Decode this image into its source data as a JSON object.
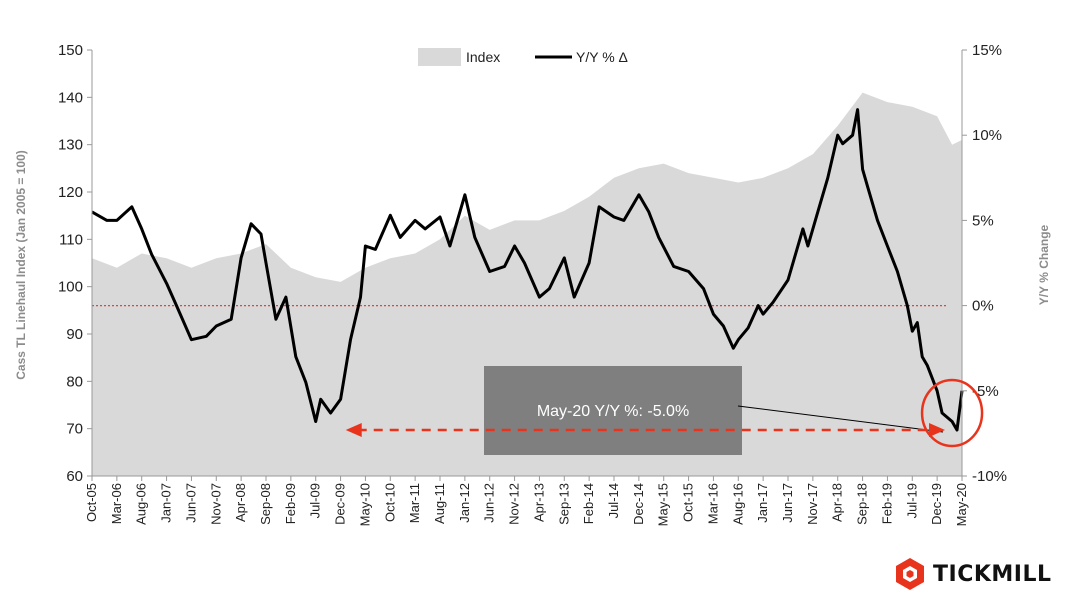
{
  "chart_data": {
    "type": "area+line",
    "legend": {
      "placement": "top-center",
      "entries": [
        {
          "name": "Index",
          "kind": "area",
          "color": "#d9d9d9"
        },
        {
          "name": "Y/Y % Δ",
          "kind": "line",
          "color": "#000000"
        }
      ]
    },
    "ylabel_left": "Cass TL Linehaul Index (Jan 2005 = 100)",
    "ylabel_right": "Y/Y % Change",
    "ylim_left": [
      60,
      150
    ],
    "yticks_left": [
      "60",
      "70",
      "80",
      "90",
      "100",
      "110",
      "120",
      "130",
      "140",
      "150"
    ],
    "ylim_right": [
      -10,
      15
    ],
    "yticks_right": [
      "-10%",
      "-5%",
      "0%",
      "5%",
      "10%",
      "15%"
    ],
    "xticks": [
      "Oct-05",
      "Mar-06",
      "Aug-06",
      "Jan-07",
      "Jun-07",
      "Nov-07",
      "Apr-08",
      "Sep-08",
      "Feb-09",
      "Jul-09",
      "Dec-09",
      "May-10",
      "Oct-10",
      "Mar-11",
      "Aug-11",
      "Jan-12",
      "Jun-12",
      "Nov-12",
      "Apr-13",
      "Sep-13",
      "Feb-14",
      "Jul-14",
      "Dec-14",
      "May-15",
      "Oct-15",
      "Mar-16",
      "Aug-16",
      "Jan-17",
      "Jun-17",
      "Nov-17",
      "Apr-18",
      "Sep-18",
      "Feb-19",
      "Jul-19",
      "Dec-19",
      "May-20"
    ],
    "index_series": {
      "name": "Index",
      "points": [
        [
          "Oct-05",
          106
        ],
        [
          "Mar-06",
          104
        ],
        [
          "Aug-06",
          107
        ],
        [
          "Jan-07",
          106
        ],
        [
          "Jun-07",
          104
        ],
        [
          "Nov-07",
          106
        ],
        [
          "Apr-08",
          107
        ],
        [
          "Sep-08",
          109
        ],
        [
          "Feb-09",
          104
        ],
        [
          "Jul-09",
          102
        ],
        [
          "Dec-09",
          101
        ],
        [
          "May-10",
          104
        ],
        [
          "Oct-10",
          106
        ],
        [
          "Mar-11",
          107
        ],
        [
          "Aug-11",
          110
        ],
        [
          "Jan-12",
          115
        ],
        [
          "Jun-12",
          112
        ],
        [
          "Nov-12",
          114
        ],
        [
          "Apr-13",
          114
        ],
        [
          "Sep-13",
          116
        ],
        [
          "Feb-14",
          119
        ],
        [
          "Jul-14",
          123
        ],
        [
          "Dec-14",
          125
        ],
        [
          "May-15",
          126
        ],
        [
          "Oct-15",
          124
        ],
        [
          "Mar-16",
          123
        ],
        [
          "Aug-16",
          122
        ],
        [
          "Jan-17",
          123
        ],
        [
          "Jun-17",
          125
        ],
        [
          "Nov-17",
          128
        ],
        [
          "Apr-18",
          134
        ],
        [
          "Sep-18",
          141
        ],
        [
          "Feb-19",
          139
        ],
        [
          "Jul-19",
          138
        ],
        [
          "Dec-19",
          136
        ],
        [
          "Mar-20",
          130
        ],
        [
          "May-20",
          131
        ]
      ]
    },
    "yoy_series": {
      "name": "Y/Y % Δ",
      "unit": "%",
      "points": [
        [
          "Oct-05",
          5.5
        ],
        [
          "Jan-06",
          5.0
        ],
        [
          "Mar-06",
          5.0
        ],
        [
          "Jun-06",
          5.8
        ],
        [
          "Aug-06",
          4.5
        ],
        [
          "Oct-06",
          3.0
        ],
        [
          "Jan-07",
          1.3
        ],
        [
          "Mar-07",
          0.0
        ],
        [
          "Jun-07",
          -2.0
        ],
        [
          "Sep-07",
          -1.8
        ],
        [
          "Nov-07",
          -1.2
        ],
        [
          "Feb-08",
          -0.8
        ],
        [
          "Apr-08",
          2.8
        ],
        [
          "Jun-08",
          4.8
        ],
        [
          "Aug-08",
          4.2
        ],
        [
          "Sep-08",
          2.5
        ],
        [
          "Nov-08",
          -0.8
        ],
        [
          "Jan-09",
          0.5
        ],
        [
          "Mar-09",
          -3.0
        ],
        [
          "May-09",
          -4.5
        ],
        [
          "Jul-09",
          -6.8
        ],
        [
          "Aug-09",
          -5.5
        ],
        [
          "Oct-09",
          -6.3
        ],
        [
          "Dec-09",
          -5.5
        ],
        [
          "Feb-10",
          -2.0
        ],
        [
          "Apr-10",
          0.5
        ],
        [
          "May-10",
          3.5
        ],
        [
          "Jul-10",
          3.3
        ],
        [
          "Oct-10",
          5.3
        ],
        [
          "Dec-10",
          4.0
        ],
        [
          "Mar-11",
          5.0
        ],
        [
          "May-11",
          4.5
        ],
        [
          "Aug-11",
          5.2
        ],
        [
          "Oct-11",
          3.5
        ],
        [
          "Jan-12",
          6.5
        ],
        [
          "Mar-12",
          4.0
        ],
        [
          "Jun-12",
          2.0
        ],
        [
          "Sep-12",
          2.3
        ],
        [
          "Nov-12",
          3.5
        ],
        [
          "Jan-13",
          2.5
        ],
        [
          "Apr-13",
          0.5
        ],
        [
          "Jun-13",
          1.0
        ],
        [
          "Sep-13",
          2.8
        ],
        [
          "Nov-13",
          0.5
        ],
        [
          "Feb-14",
          2.5
        ],
        [
          "Apr-14",
          5.8
        ],
        [
          "Jul-14",
          5.2
        ],
        [
          "Sep-14",
          5.0
        ],
        [
          "Dec-14",
          6.5
        ],
        [
          "Feb-15",
          5.5
        ],
        [
          "Apr-15",
          4.0
        ],
        [
          "Jul-15",
          2.3
        ],
        [
          "Oct-15",
          2.0
        ],
        [
          "Jan-16",
          1.0
        ],
        [
          "Mar-16",
          -0.5
        ],
        [
          "May-16",
          -1.2
        ],
        [
          "Jul-16",
          -2.5
        ],
        [
          "Aug-16",
          -2.0
        ],
        [
          "Oct-16",
          -1.3
        ],
        [
          "Dec-16",
          0.0
        ],
        [
          "Jan-17",
          -0.5
        ],
        [
          "Mar-17",
          0.2
        ],
        [
          "Jun-17",
          1.5
        ],
        [
          "Sep-17",
          4.5
        ],
        [
          "Oct-17",
          3.5
        ],
        [
          "Dec-17",
          5.5
        ],
        [
          "Feb-18",
          7.5
        ],
        [
          "Apr-18",
          10.0
        ],
        [
          "May-18",
          9.5
        ],
        [
          "Jul-18",
          10.0
        ],
        [
          "Aug-18",
          11.5
        ],
        [
          "Sep-18",
          8.0
        ],
        [
          "Oct-18",
          7.0
        ],
        [
          "Dec-18",
          5.0
        ],
        [
          "Feb-19",
          3.5
        ],
        [
          "Apr-19",
          2.0
        ],
        [
          "Jun-19",
          0.0
        ],
        [
          "Jul-19",
          -1.5
        ],
        [
          "Aug-19",
          -1.0
        ],
        [
          "Sep-19",
          -3.0
        ],
        [
          "Oct-19",
          -3.5
        ],
        [
          "Dec-19",
          -5.0
        ],
        [
          "Jan-20",
          -6.3
        ],
        [
          "Mar-20",
          -6.8
        ],
        [
          "Apr-20",
          -7.3
        ],
        [
          "May-20",
          -5.0
        ]
      ]
    },
    "zero_line": {
      "value": 0,
      "color": "#e8413a",
      "style": "dotted"
    },
    "annotations": {
      "callout": "May-20 Y/Y %: -5.0%",
      "arrow_span": [
        "Jul-09",
        "Apr-20"
      ],
      "highlight": "May-20"
    },
    "colors": {
      "accent": "#e8341c",
      "index_fill": "#d9d9d9",
      "callout_fill": "#7f7f7f"
    }
  },
  "brand": {
    "name": "TICKMILL",
    "logo_color": "#e8341c"
  }
}
